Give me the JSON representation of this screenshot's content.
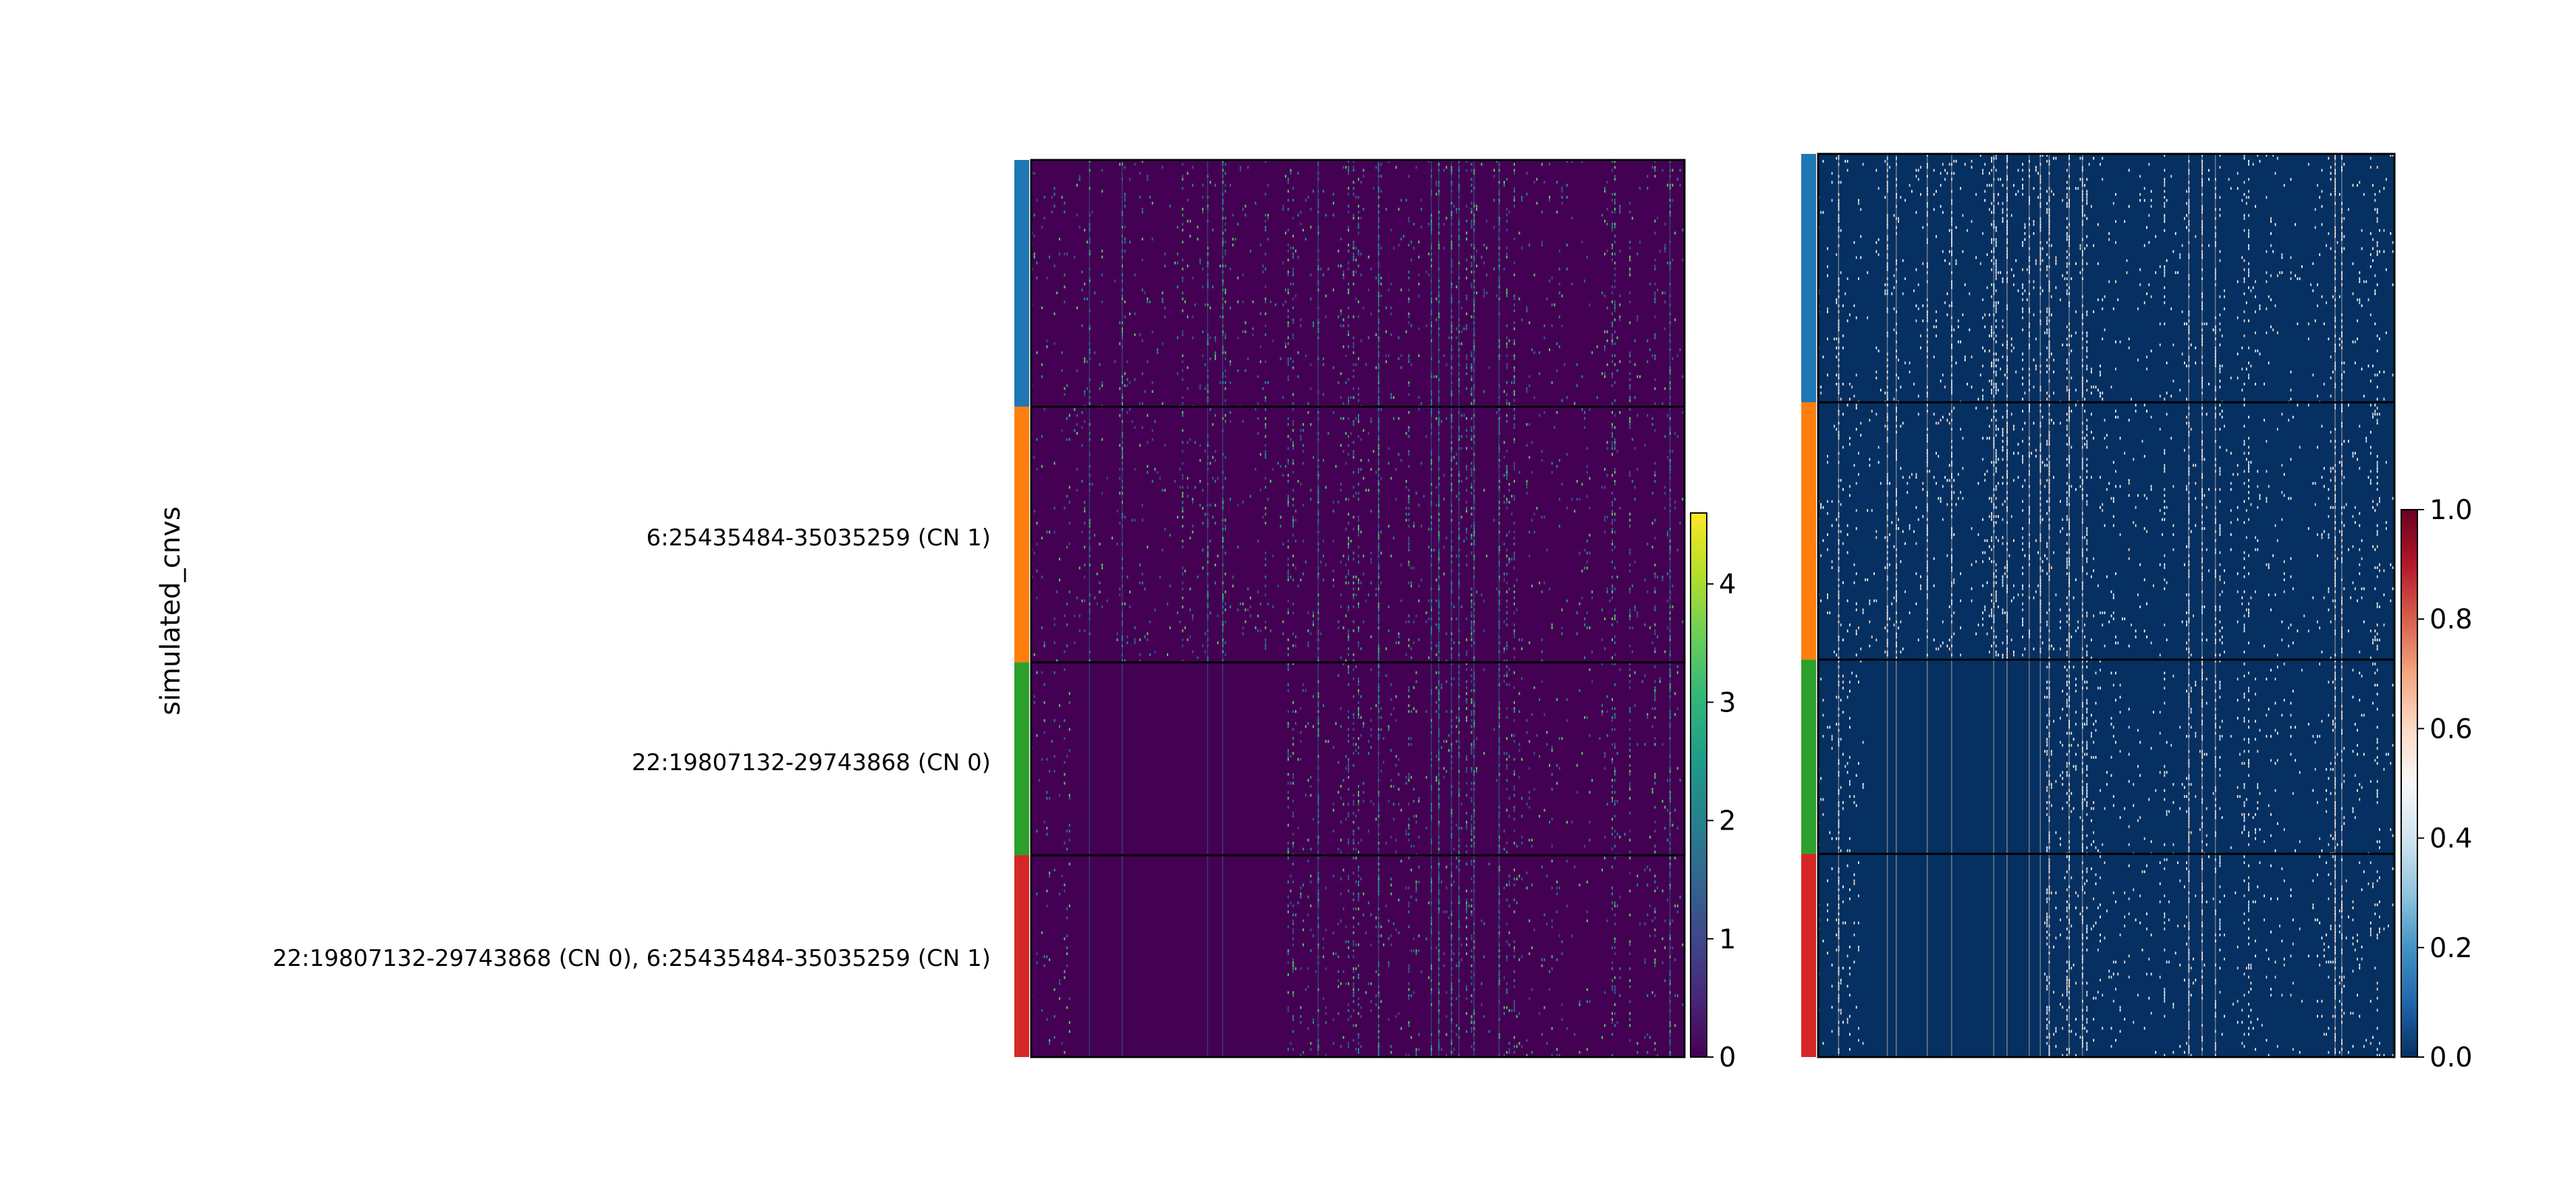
{
  "chart_data": [
    {
      "type": "heatmap",
      "panel": "left",
      "title": "",
      "ylabel": "simulated_cnvs",
      "xlabel": "",
      "colormap": "viridis",
      "vmin": 0,
      "vmax": 4.6,
      "colorbar_ticks": [
        "0",
        "1",
        "2",
        "3",
        "4"
      ],
      "groups": [
        {
          "label": "",
          "color": "#1f77b4",
          "fraction": 0.275
        },
        {
          "label": "6:25435484-35035259 (CN 1)",
          "color": "#ff7f0e",
          "fraction": 0.285
        },
        {
          "label": "22:19807132-29743868 (CN 0)",
          "color": "#2ca02c",
          "fraction": 0.215
        },
        {
          "label": "22:19807132-29743868 (CN 0), 6:25435484-35035259 (CN 1)",
          "color": "#d62728",
          "fraction": 0.225
        }
      ],
      "deleted_region_x": [
        0.06,
        0.39
      ],
      "background_color": "#440154",
      "signal_colors": [
        "#3b528b",
        "#21918c",
        "#31688e",
        "#5ec962"
      ]
    },
    {
      "type": "heatmap",
      "panel": "right",
      "title": "",
      "colormap": "RdBu_r",
      "vmin": 0.0,
      "vmax": 1.0,
      "colorbar_ticks": [
        "0.0",
        "0.2",
        "0.4",
        "0.6",
        "0.8",
        "1.0"
      ],
      "groups": [
        {
          "label": "",
          "color": "#1f77b4",
          "fraction": 0.275
        },
        {
          "label": "6:25435484-35035259 (CN 1)",
          "color": "#ff7f0e",
          "fraction": 0.285
        },
        {
          "label": "22:19807132-29743868 (CN 0)",
          "color": "#2ca02c",
          "fraction": 0.215
        },
        {
          "label": "22:19807132-29743868 (CN 0), 6:25435484-35035259 (CN 1)",
          "color": "#d62728",
          "fraction": 0.225
        }
      ],
      "deleted_region_x": [
        0.08,
        0.39
      ],
      "background_color": "#053061",
      "signal_colors": [
        "#f7f7f7",
        "#fddbc7",
        "#d1e5f0",
        "#ffffff"
      ]
    }
  ],
  "colors": {
    "viridis": [
      "#440154",
      "#482878",
      "#3e4989",
      "#31688e",
      "#26828e",
      "#1f9e89",
      "#35b779",
      "#6ece58",
      "#b5de2b",
      "#fde725"
    ],
    "rdbu_r": [
      "#053061",
      "#2166ac",
      "#4393c3",
      "#92c5de",
      "#d1e5f0",
      "#f7f7f7",
      "#fddbc7",
      "#f4a582",
      "#d6604d",
      "#b2182b",
      "#67001f"
    ]
  }
}
